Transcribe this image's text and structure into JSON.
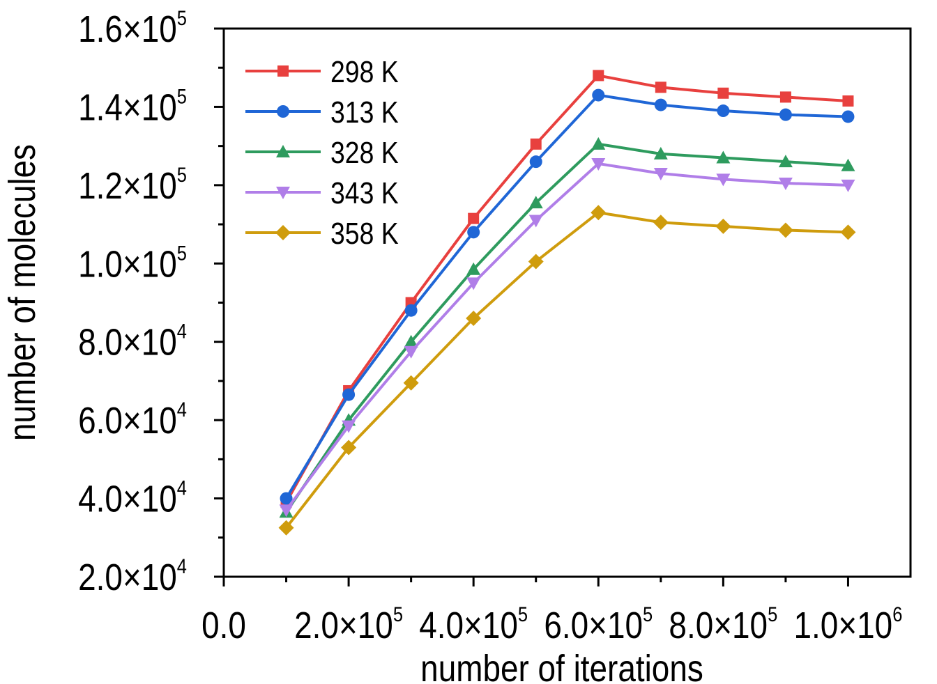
{
  "chart_data": {
    "type": "line",
    "title": "",
    "xlabel": "number of iterations",
    "ylabel": "number of molecules",
    "xlim": [
      0,
      1100000
    ],
    "ylim": [
      20000,
      160000
    ],
    "x_ticks": [
      {
        "value": 0,
        "mantissa": "0.0",
        "exp": ""
      },
      {
        "value": 200000,
        "mantissa": "2.0×10",
        "exp": "5"
      },
      {
        "value": 400000,
        "mantissa": "4.0×10",
        "exp": "5"
      },
      {
        "value": 600000,
        "mantissa": "6.0×10",
        "exp": "5"
      },
      {
        "value": 800000,
        "mantissa": "8.0×10",
        "exp": "5"
      },
      {
        "value": 1000000,
        "mantissa": "1.0×10",
        "exp": "6"
      }
    ],
    "y_ticks": [
      {
        "value": 20000,
        "mantissa": "2.0×10",
        "exp": "4"
      },
      {
        "value": 40000,
        "mantissa": "4.0×10",
        "exp": "4"
      },
      {
        "value": 60000,
        "mantissa": "6.0×10",
        "exp": "4"
      },
      {
        "value": 80000,
        "mantissa": "8.0×10",
        "exp": "4"
      },
      {
        "value": 100000,
        "mantissa": "1.0×10",
        "exp": "5"
      },
      {
        "value": 120000,
        "mantissa": "1.2×10",
        "exp": "5"
      },
      {
        "value": 140000,
        "mantissa": "1.4×10",
        "exp": "5"
      },
      {
        "value": 160000,
        "mantissa": "1.6×10",
        "exp": "5"
      }
    ],
    "grid": false,
    "legend_position": "top-left",
    "x": [
      100000,
      200000,
      300000,
      400000,
      500000,
      600000,
      700000,
      800000,
      900000,
      1000000
    ],
    "series": [
      {
        "name": "298 K",
        "color": "#e8403e",
        "marker": "square",
        "values": [
          39000,
          67500,
          90000,
          111500,
          130500,
          148000,
          145000,
          143500,
          142500,
          141500
        ]
      },
      {
        "name": "313 K",
        "color": "#1f66d6",
        "marker": "circle",
        "values": [
          40000,
          66500,
          88000,
          108000,
          126000,
          143000,
          140500,
          139000,
          138000,
          137500
        ]
      },
      {
        "name": "328 K",
        "color": "#2e9b5e",
        "marker": "triangle-up",
        "values": [
          36500,
          60000,
          80000,
          98500,
          115500,
          130500,
          128000,
          127000,
          126000,
          125000
        ]
      },
      {
        "name": "343 K",
        "color": "#b07ee8",
        "marker": "triangle-down",
        "values": [
          37000,
          58500,
          77500,
          95000,
          111000,
          125500,
          123000,
          121500,
          120500,
          120000
        ]
      },
      {
        "name": "358 K",
        "color": "#cf9c0d",
        "marker": "diamond",
        "values": [
          32500,
          53000,
          69500,
          86000,
          100500,
          113000,
          110500,
          109500,
          108500,
          108000
        ]
      }
    ]
  }
}
